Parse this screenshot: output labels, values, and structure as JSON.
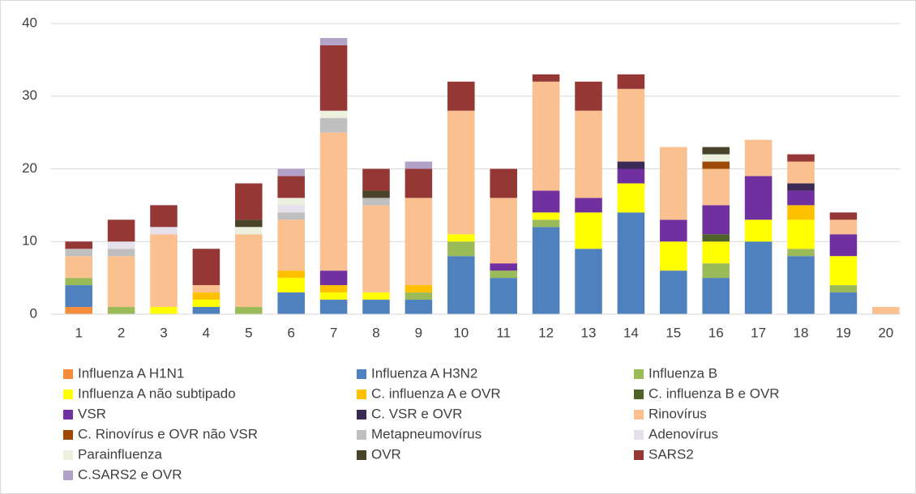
{
  "chart_data": {
    "type": "stacked_bar",
    "categories": [
      "1",
      "2",
      "3",
      "4",
      "5",
      "6",
      "7",
      "8",
      "9",
      "10",
      "11",
      "12",
      "13",
      "14",
      "15",
      "16",
      "17",
      "18",
      "19",
      "20"
    ],
    "ylim": [
      0,
      40
    ],
    "yticks": [
      0,
      10,
      20,
      30,
      40
    ],
    "grid": true,
    "legend": "bottom",
    "series": [
      {
        "name": "Influenza A H1N1",
        "color": "#f58c3c",
        "values": [
          1,
          0,
          0,
          0,
          0,
          0,
          0,
          0,
          0,
          0,
          0,
          0,
          0,
          0,
          0,
          0,
          0,
          0,
          0,
          0
        ]
      },
      {
        "name": "Influenza A H3N2",
        "color": "#4e81bd",
        "values": [
          3,
          0,
          0,
          1,
          0,
          3,
          2,
          2,
          2,
          8,
          5,
          12,
          9,
          14,
          6,
          5,
          10,
          8,
          3,
          0
        ]
      },
      {
        "name": "Influenza B",
        "color": "#9bbb59",
        "values": [
          1,
          1,
          0,
          0,
          1,
          0,
          0,
          0,
          1,
          2,
          1,
          1,
          0,
          0,
          0,
          2,
          0,
          1,
          1,
          0
        ]
      },
      {
        "name": "Influenza A não subtipado",
        "color": "#ffff00",
        "values": [
          0,
          0,
          1,
          1,
          0,
          2,
          1,
          1,
          0,
          1,
          0,
          1,
          5,
          4,
          4,
          3,
          3,
          4,
          4,
          0
        ]
      },
      {
        "name": "C. influenza A e OVR",
        "color": "#ffc000",
        "values": [
          0,
          0,
          0,
          1,
          0,
          1,
          1,
          0,
          1,
          0,
          0,
          0,
          0,
          0,
          0,
          0,
          0,
          2,
          0,
          0
        ]
      },
      {
        "name": "C. influenza B e OVR",
        "color": "#4f6228",
        "values": [
          0,
          0,
          0,
          0,
          0,
          0,
          0,
          0,
          0,
          0,
          0,
          0,
          0,
          0,
          0,
          1,
          0,
          0,
          0,
          0
        ]
      },
      {
        "name": "VSR",
        "color": "#7030a0",
        "values": [
          0,
          0,
          0,
          0,
          0,
          0,
          2,
          0,
          0,
          0,
          1,
          3,
          2,
          2,
          3,
          4,
          6,
          2,
          3,
          0
        ]
      },
      {
        "name": "C. VSR e OVR",
        "color": "#3b2a55",
        "values": [
          0,
          0,
          0,
          0,
          0,
          0,
          0,
          0,
          0,
          0,
          0,
          0,
          0,
          1,
          0,
          0,
          0,
          1,
          0,
          0
        ]
      },
      {
        "name": "Rinovírus",
        "color": "#fac090",
        "values": [
          3,
          7,
          10,
          1,
          10,
          7,
          19,
          12,
          12,
          17,
          9,
          15,
          12,
          10,
          10,
          5,
          5,
          3,
          2,
          1
        ]
      },
      {
        "name": "C. Rinovírus e OVR não VSR",
        "color": "#9c4a06",
        "values": [
          0,
          0,
          0,
          0,
          0,
          0,
          0,
          0,
          0,
          0,
          0,
          0,
          0,
          0,
          0,
          1,
          0,
          0,
          0,
          0
        ]
      },
      {
        "name": "Metapneumovírus",
        "color": "#bfbfbf",
        "values": [
          1,
          1,
          0,
          0,
          0,
          1,
          2,
          1,
          0,
          0,
          0,
          0,
          0,
          0,
          0,
          0,
          0,
          0,
          0,
          0
        ]
      },
      {
        "name": "Adenovírus",
        "color": "#e6e0ec",
        "values": [
          0,
          1,
          1,
          0,
          0,
          1,
          0,
          0,
          0,
          0,
          0,
          0,
          0,
          0,
          0,
          0,
          0,
          0,
          0,
          0
        ]
      },
      {
        "name": "Parainfluenza",
        "color": "#ebf1de",
        "values": [
          0,
          0,
          0,
          0,
          1,
          1,
          1,
          0,
          0,
          0,
          0,
          0,
          0,
          0,
          0,
          1,
          0,
          0,
          0,
          0
        ]
      },
      {
        "name": "OVR",
        "color": "#494429",
        "values": [
          0,
          0,
          0,
          0,
          1,
          0,
          0,
          1,
          0,
          0,
          0,
          0,
          0,
          0,
          0,
          1,
          0,
          0,
          0,
          0
        ]
      },
      {
        "name": "SARS2",
        "color": "#953735",
        "values": [
          1,
          3,
          3,
          5,
          5,
          3,
          9,
          3,
          4,
          4,
          4,
          1,
          4,
          2,
          0,
          0,
          0,
          1,
          1,
          0
        ]
      },
      {
        "name": "C.SARS2 e OVR",
        "color": "#b3a2c7",
        "values": [
          0,
          0,
          0,
          0,
          0,
          1,
          1,
          0,
          1,
          0,
          0,
          0,
          0,
          0,
          0,
          0,
          0,
          0,
          0,
          0
        ]
      }
    ]
  }
}
